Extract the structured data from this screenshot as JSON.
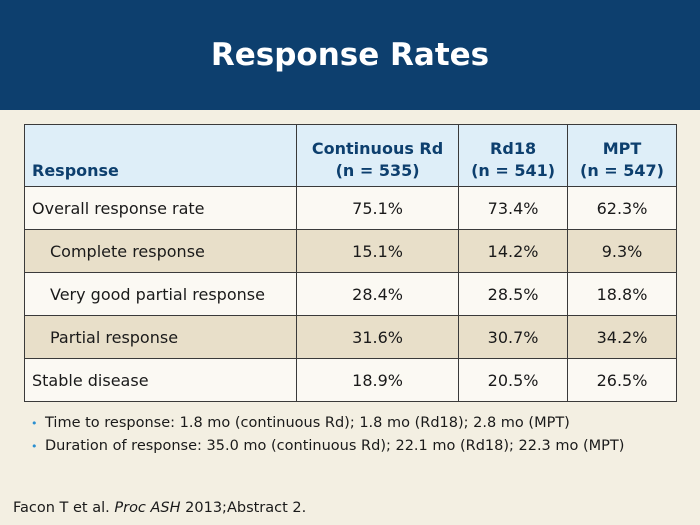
{
  "slide": {
    "title": "Response Rates"
  },
  "table": {
    "headers": {
      "response": "Response",
      "cols": [
        {
          "line1": "Continuous Rd",
          "line2": "(n = 535)"
        },
        {
          "line1": "Rd18",
          "line2": "(n = 541)"
        },
        {
          "line1": "MPT",
          "line2": "(n = 547)"
        }
      ]
    },
    "rows": [
      {
        "label": "Overall response rate",
        "values": [
          "75.1%",
          "73.4%",
          "62.3%"
        ]
      },
      {
        "label": "Complete response",
        "values": [
          "15.1%",
          "14.2%",
          "9.3%"
        ]
      },
      {
        "label": "Very good partial response",
        "values": [
          "28.4%",
          "28.5%",
          "18.8%"
        ]
      },
      {
        "label": "Partial response",
        "values": [
          "31.6%",
          "30.7%",
          "34.2%"
        ]
      },
      {
        "label": "Stable disease",
        "values": [
          "18.9%",
          "20.5%",
          "26.5%"
        ]
      }
    ]
  },
  "bullets": [
    "Time to response: 1.8 mo (continuous Rd); 1.8 mo (Rd18); 2.8 mo (MPT)",
    "Duration of response: 35.0 mo (continuous Rd); 22.1 mo (Rd18); 22.3 mo (MPT)"
  ],
  "bullet_glyph": "•",
  "citation": {
    "authors": "Facon T et al. ",
    "journal": "Proc ASH",
    "rest": " 2013;Abstract 2."
  },
  "colors": {
    "header_bg": "#0d3f6e",
    "table_header_bg": "#deeef8",
    "row_alt_bg": "#e8dfc9",
    "bullet": "#2a8fd0",
    "page_bg": "#f3efe2"
  }
}
